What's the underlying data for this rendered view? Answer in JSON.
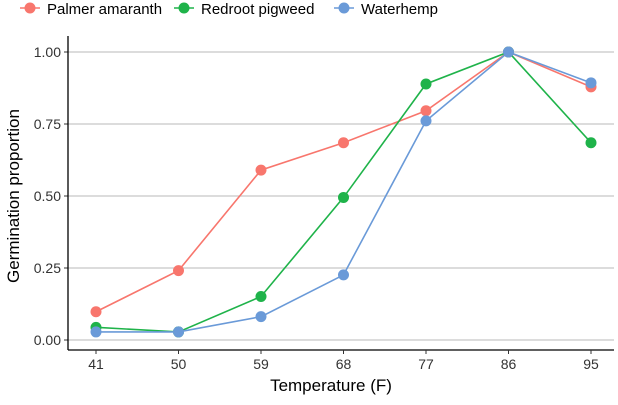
{
  "chart_data": {
    "type": "line",
    "xlabel": "Temperature (F)",
    "ylabel": "Germination proportion",
    "categories": [
      "41",
      "50",
      "59",
      "68",
      "77",
      "86",
      "95"
    ],
    "y_ticks": [
      "0.00",
      "0.25",
      "0.50",
      "0.75",
      "1.00"
    ],
    "ylim": [
      0,
      1
    ],
    "grid": "horizontal major",
    "legend_position": "top",
    "series": [
      {
        "name": "Palmer amaranth",
        "color": "#F8766D",
        "values": [
          0.098,
          0.241,
          0.59,
          0.685,
          0.796,
          1.0,
          0.879
        ]
      },
      {
        "name": "Redroot pigweed",
        "color": "#1FB34A",
        "values": [
          0.044,
          0.028,
          0.151,
          0.495,
          0.889,
          1.0,
          0.685
        ]
      },
      {
        "name": "Waterhemp",
        "color": "#6A9AD8",
        "values": [
          0.028,
          0.028,
          0.081,
          0.226,
          0.761,
          1.0,
          0.893
        ]
      }
    ]
  }
}
